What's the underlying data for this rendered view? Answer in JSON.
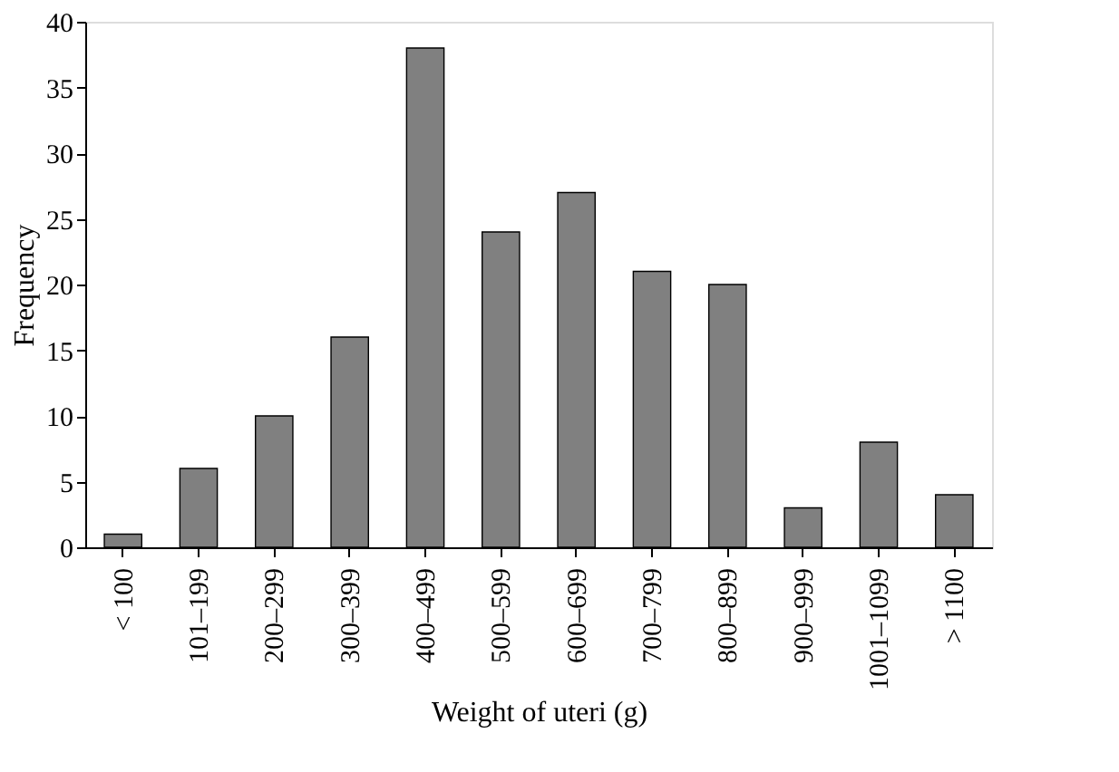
{
  "chart_data": {
    "type": "bar",
    "xlabel": "Weight of uteri (g)",
    "ylabel": "Frequency",
    "categories": [
      "< 100",
      "101–199",
      "200–299",
      "300–399",
      "400–499",
      "500–599",
      "600–699",
      "700–799",
      "800–899",
      "900–999",
      "1001–1099",
      "> 1100"
    ],
    "values": [
      1,
      6,
      10,
      16,
      38,
      24,
      27,
      21,
      20,
      3,
      8,
      4
    ],
    "color": "#808080",
    "ylim": [
      0,
      40
    ],
    "yticks": [
      0,
      5,
      10,
      15,
      20,
      25,
      30,
      35,
      40
    ],
    "grid": false
  }
}
